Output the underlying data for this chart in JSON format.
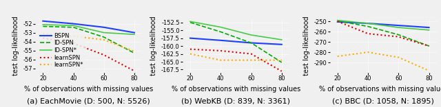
{
  "x": [
    20,
    40,
    60,
    80
  ],
  "plots": [
    {
      "title": "(a) EachMovie (D: 500, N: 5526)",
      "ylabel": "test log-likelihood",
      "xlabel": "% of observations with missing values",
      "ylim": [
        -57.5,
        -51.5
      ],
      "yticks": [
        -57,
        -56,
        -55,
        -54,
        -53,
        -52
      ],
      "series": {
        "BSPN": {
          "y": [
            -51.7,
            -52.0,
            -52.4,
            -53.0
          ],
          "color": "#1f3fff",
          "linestyle": "-",
          "linewidth": 1.5
        },
        "ID-SPN": {
          "y": [
            -52.3,
            -52.4,
            -53.5,
            -55.3
          ],
          "color": "#00aa00",
          "linestyle": "--",
          "linewidth": 1.2
        },
        "ID-SPN*": {
          "y": [
            -52.1,
            -52.2,
            -53.0,
            -53.2
          ],
          "color": "#44cc44",
          "linestyle": "-",
          "linewidth": 1.2
        },
        "learnSPN": {
          "y": [
            -53.6,
            -54.2,
            -55.5,
            -57.3
          ],
          "color": "#dd0000",
          "linestyle": ":",
          "linewidth": 1.5
        },
        "learnSPN*": {
          "y": [
            -53.1,
            -53.4,
            -53.8,
            -55.1
          ],
          "color": "#ffaa00",
          "linestyle": ":",
          "linewidth": 1.5
        }
      },
      "show_legend": true
    },
    {
      "title": "(b) WebKB (D: 839, N: 3361)",
      "ylabel": "test log-likelihood",
      "xlabel": "% of observations with missing values",
      "ylim": [
        -168.5,
        -151.5
      ],
      "yticks": [
        -167.5,
        -165.0,
        -162.5,
        -160.0,
        -157.5,
        -155.0,
        -152.5
      ],
      "series": {
        "BSPN": {
          "y": [
            -157.5,
            -158.2,
            -159.0,
            -159.5
          ],
          "color": "#1f3fff",
          "linestyle": "-",
          "linewidth": 1.5
        },
        "ID-SPN": {
          "y": [
            -152.5,
            -155.5,
            -159.0,
            -165.2
          ],
          "color": "#00aa00",
          "linestyle": "--",
          "linewidth": 1.2
        },
        "ID-SPN*": {
          "y": [
            -152.2,
            -154.0,
            -156.5,
            -158.0
          ],
          "color": "#44cc44",
          "linestyle": "-",
          "linewidth": 1.2
        },
        "learnSPN": {
          "y": [
            -161.0,
            -161.5,
            -162.5,
            -168.0
          ],
          "color": "#dd0000",
          "linestyle": ":",
          "linewidth": 1.5
        },
        "learnSPN*": {
          "y": [
            -162.5,
            -164.5,
            -164.5,
            -164.5
          ],
          "color": "#ffaa00",
          "linestyle": ":",
          "linewidth": 1.5
        }
      },
      "show_legend": false
    },
    {
      "title": "(c) BBC (D: 1058, N: 1895)",
      "ylabel": "test log-likelihood",
      "xlabel": "% of observations with missing values",
      "ylim": [
        -300,
        -248
      ],
      "yticks": [
        -290,
        -280,
        -270,
        -260,
        -250
      ],
      "series": {
        "BSPN": {
          "y": [
            -250.5,
            -252.0,
            -254.0,
            -256.0
          ],
          "color": "#1f3fff",
          "linestyle": "-",
          "linewidth": 1.5
        },
        "ID-SPN": {
          "y": [
            -249.5,
            -255.0,
            -263.0,
            -274.0
          ],
          "color": "#00aa00",
          "linestyle": "--",
          "linewidth": 1.2
        },
        "ID-SPN*": {
          "y": [
            -249.0,
            -252.0,
            -256.0,
            -258.5
          ],
          "color": "#44cc44",
          "linestyle": "-",
          "linewidth": 1.2
        },
        "learnSPN": {
          "y": [
            -250.0,
            -262.0,
            -265.0,
            -274.0
          ],
          "color": "#dd0000",
          "linestyle": ":",
          "linewidth": 1.5
        },
        "learnSPN*": {
          "y": [
            -284.0,
            -280.0,
            -285.0,
            -298.0
          ],
          "color": "#ffaa00",
          "linestyle": ":",
          "linewidth": 1.5
        }
      },
      "show_legend": false
    }
  ],
  "legend_order": [
    "BSPN",
    "ID-SPN",
    "ID-SPN*",
    "learnSPN",
    "learnSPN*"
  ],
  "background_color": "#f0f0f0",
  "title_fontsize": 8,
  "label_fontsize": 7,
  "tick_fontsize": 6,
  "legend_fontsize": 6
}
